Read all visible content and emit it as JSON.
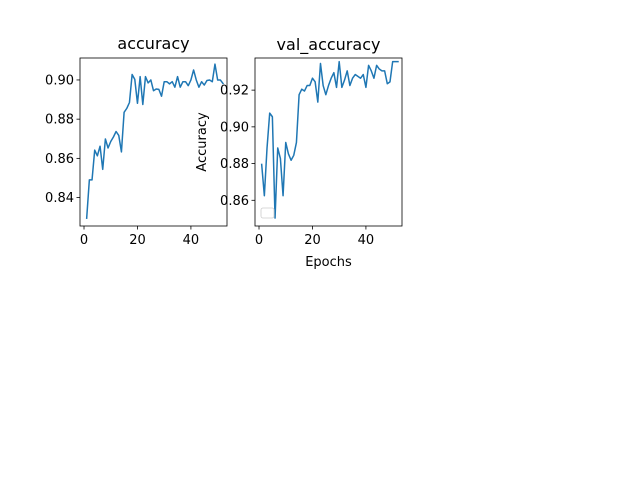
{
  "colors": {
    "series": "#1f77b4",
    "background": "#ffffff",
    "axis": "#000000",
    "legend_border": "#cccccc"
  },
  "chart_data": [
    {
      "type": "line",
      "title": "accuracy",
      "xlabel": "",
      "ylabel": "",
      "xlim": [
        -1.5,
        53.5
      ],
      "ylim": [
        0.8255,
        0.9112
      ],
      "x_ticks": [
        0,
        20,
        40
      ],
      "x_tick_labels": [
        "0",
        "20",
        "40"
      ],
      "y_ticks": [
        0.84,
        0.86,
        0.88,
        0.9
      ],
      "y_tick_labels": [
        "0.84",
        "0.86",
        "0.88",
        "0.90"
      ],
      "grid": false,
      "legend": "none",
      "series": [
        {
          "x": [
            1,
            2,
            3,
            4,
            5,
            6,
            7,
            8,
            9,
            10,
            11,
            12,
            13,
            14,
            15,
            16,
            17,
            18,
            19,
            20,
            21,
            22,
            23,
            24,
            25,
            26,
            27,
            28,
            29,
            30,
            31,
            32,
            33,
            34,
            35,
            36,
            37,
            38,
            39,
            40,
            41,
            42,
            43,
            44,
            45,
            46,
            47,
            48,
            49,
            50,
            51,
            52
          ],
          "values": [
            0.8295,
            0.849,
            0.849,
            0.8642,
            0.8613,
            0.8662,
            0.8544,
            0.8699,
            0.8653,
            0.8686,
            0.8709,
            0.8737,
            0.8717,
            0.8633,
            0.8835,
            0.8855,
            0.8885,
            0.9028,
            0.9003,
            0.8881,
            0.9017,
            0.8875,
            0.9017,
            0.8985,
            0.9,
            0.8945,
            0.8954,
            0.8952,
            0.8917,
            0.8991,
            0.8991,
            0.898,
            0.8991,
            0.8963,
            0.9017,
            0.8963,
            0.8991,
            0.8991,
            0.8971,
            0.9,
            0.9051,
            0.9,
            0.8963,
            0.8991,
            0.8974,
            0.8997,
            0.9,
            0.8991,
            0.9081,
            0.9,
            0.9,
            0.8982
          ]
        }
      ]
    },
    {
      "type": "line",
      "title": "val_accuracy",
      "xlabel": "Epochs",
      "ylabel": "Accuracy",
      "xlim": [
        -1.5,
        53.5
      ],
      "ylim": [
        0.846,
        0.9375
      ],
      "x_ticks": [
        0,
        20,
        40
      ],
      "x_tick_labels": [
        "0",
        "20",
        "40"
      ],
      "y_ticks": [
        0.86,
        0.88,
        0.9,
        0.92
      ],
      "y_tick_labels": [
        "0.86",
        "0.88",
        "0.90",
        "0.92"
      ],
      "grid": false,
      "legend": "lower-left",
      "series": [
        {
          "x": [
            1,
            2,
            3,
            4,
            5,
            6,
            7,
            8,
            9,
            10,
            11,
            12,
            13,
            14,
            15,
            16,
            17,
            18,
            19,
            20,
            21,
            22,
            23,
            24,
            25,
            26,
            27,
            28,
            29,
            30,
            31,
            32,
            33,
            34,
            35,
            36,
            37,
            38,
            39,
            40,
            41,
            42,
            43,
            44,
            45,
            46,
            47,
            48,
            49,
            50,
            51,
            52
          ],
          "values": [
            0.8795,
            0.8625,
            0.8885,
            0.9075,
            0.9055,
            0.8503,
            0.8885,
            0.8828,
            0.8625,
            0.8915,
            0.8853,
            0.8818,
            0.8845,
            0.8915,
            0.9175,
            0.9205,
            0.9195,
            0.9225,
            0.9225,
            0.9265,
            0.9245,
            0.9135,
            0.9345,
            0.9225,
            0.9175,
            0.9225,
            0.9265,
            0.9295,
            0.9215,
            0.9355,
            0.9215,
            0.9255,
            0.9305,
            0.9225,
            0.9265,
            0.9285,
            0.9275,
            0.9265,
            0.9285,
            0.9215,
            0.9335,
            0.9305,
            0.9265,
            0.9335,
            0.9315,
            0.9305,
            0.9305,
            0.9235,
            0.9245,
            0.9355,
            0.9355,
            0.9355
          ]
        }
      ]
    }
  ]
}
